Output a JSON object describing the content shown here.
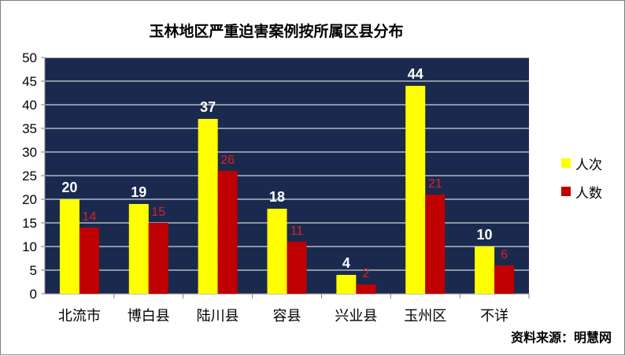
{
  "chart_data": {
    "type": "bar",
    "title": "玉林地区严重迫害案例按所属区县分布",
    "categories": [
      "北流市",
      "博白县",
      "陆川县",
      "容县",
      "兴业县",
      "玉州区",
      "不详"
    ],
    "series": [
      {
        "name": "人次",
        "values": [
          20,
          19,
          37,
          18,
          4,
          44,
          10
        ],
        "color": "#ffff00",
        "label_color": "#ffffff"
      },
      {
        "name": "人数",
        "values": [
          14,
          15,
          26,
          11,
          2,
          21,
          6
        ],
        "color": "#c00000",
        "label_color": "#e02020"
      }
    ],
    "yticks": [
      0,
      5,
      10,
      15,
      20,
      25,
      30,
      35,
      40,
      45,
      50
    ],
    "ylim": [
      0,
      50
    ],
    "legend_position": "right",
    "plot_background": "#1a2a4f",
    "source": "资料来源：明慧网"
  }
}
